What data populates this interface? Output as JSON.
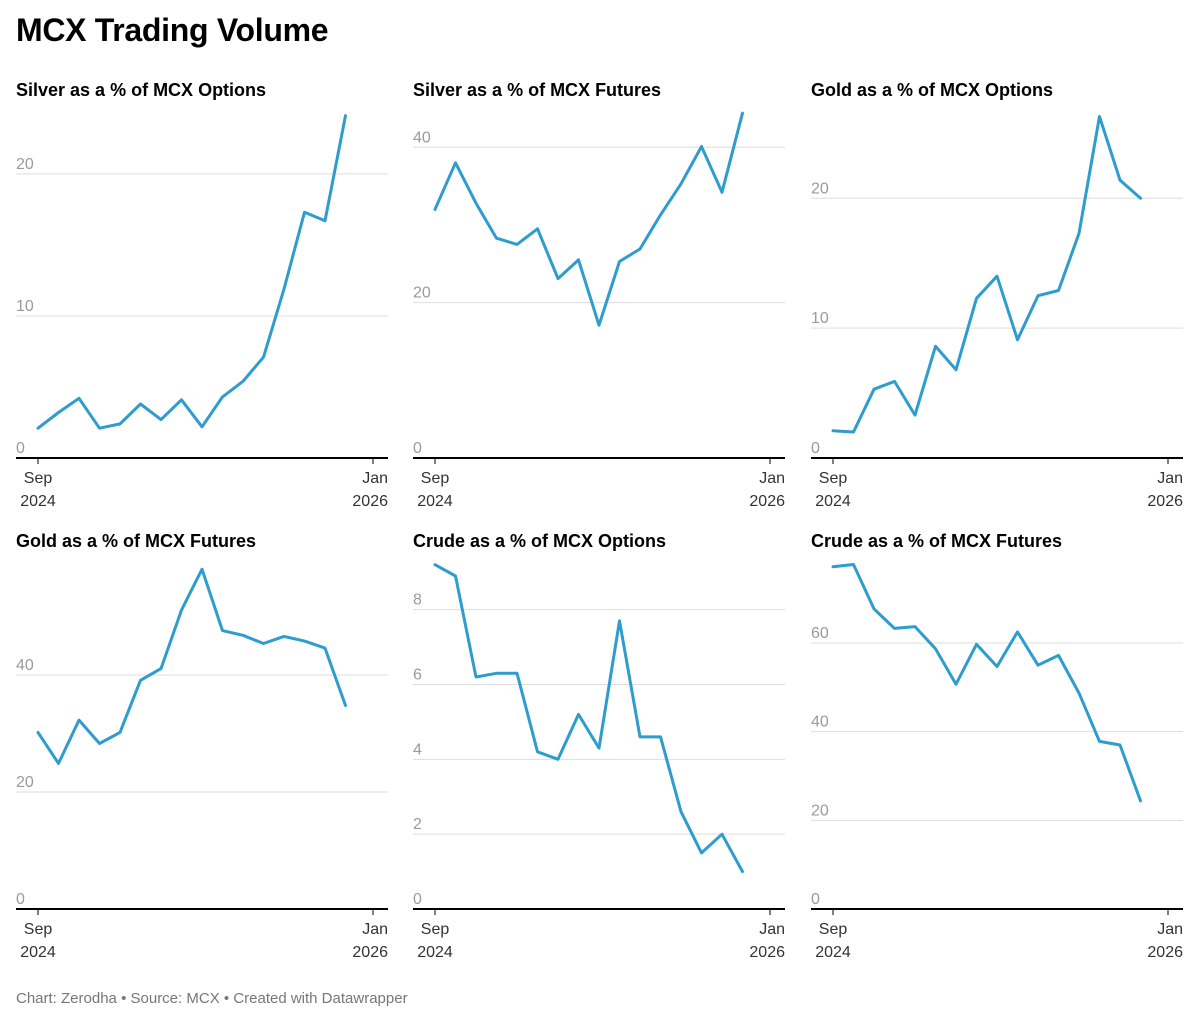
{
  "title": "MCX Trading Volume",
  "footer": {
    "chart_by": "Chart: Zerodha",
    "separator": "•",
    "source": "Source: MCX",
    "created_with": "Created with Datawrapper"
  },
  "colors": {
    "line": "#2e9ccc",
    "grid": "#dddddd",
    "axis": "#000000",
    "tick_label": "#9a9a9a",
    "x_label": "#333333"
  },
  "chart_data": [
    {
      "type": "line",
      "title": "Silver as a % of MCX Options",
      "x": [
        "2024-09",
        "2024-10",
        "2024-11",
        "2024-12",
        "2025-01",
        "2025-02",
        "2025-03",
        "2025-04",
        "2025-05",
        "2025-06",
        "2025-07",
        "2025-08",
        "2025-09",
        "2025-10",
        "2025-11",
        "2025-12",
        "2026-01"
      ],
      "values": [
        2.1,
        3.2,
        4.2,
        2.1,
        2.4,
        3.8,
        2.7,
        4.1,
        2.2,
        4.3,
        5.4,
        7.1,
        11.9,
        17.3,
        16.7,
        24.1,
        null
      ],
      "ylim": [
        0,
        24.5
      ],
      "yticks": [
        0,
        10,
        20
      ],
      "xticks": [
        {
          "top": "Sep",
          "bottom": "2024"
        },
        {
          "top": "Jan",
          "bottom": "2026"
        }
      ],
      "xlabel": "",
      "ylabel": "",
      "grid": true
    },
    {
      "type": "line",
      "title": "Silver as a % of MCX Futures",
      "x": [
        "2024-09",
        "2024-10",
        "2024-11",
        "2024-12",
        "2025-01",
        "2025-02",
        "2025-03",
        "2025-04",
        "2025-05",
        "2025-06",
        "2025-07",
        "2025-08",
        "2025-09",
        "2025-10",
        "2025-11",
        "2025-12",
        "2026-01"
      ],
      "values": [
        32.0,
        38.0,
        32.8,
        28.3,
        27.5,
        29.5,
        23.1,
        25.5,
        17.1,
        25.3,
        26.9,
        31.3,
        35.3,
        40.1,
        34.2,
        44.4,
        null
      ],
      "ylim": [
        0,
        44.8
      ],
      "yticks": [
        0,
        20,
        40
      ],
      "xticks": [
        {
          "top": "Sep",
          "bottom": "2024"
        },
        {
          "top": "Jan",
          "bottom": "2026"
        }
      ],
      "xlabel": "",
      "ylabel": "",
      "grid": true
    },
    {
      "type": "line",
      "title": "Gold as a % of MCX Options",
      "x": [
        "2024-09",
        "2024-10",
        "2024-11",
        "2024-12",
        "2025-01",
        "2025-02",
        "2025-03",
        "2025-04",
        "2025-05",
        "2025-06",
        "2025-07",
        "2025-08",
        "2025-09",
        "2025-10",
        "2025-11",
        "2025-12",
        "2026-01"
      ],
      "values": [
        2.1,
        2.0,
        5.3,
        5.9,
        3.3,
        8.6,
        6.8,
        12.3,
        14.0,
        9.1,
        12.5,
        12.9,
        17.3,
        26.3,
        21.4,
        20.0,
        null
      ],
      "ylim": [
        0,
        26.8
      ],
      "yticks": [
        0,
        10,
        20
      ],
      "xticks": [
        {
          "top": "Sep",
          "bottom": "2024"
        },
        {
          "top": "Jan",
          "bottom": "2026"
        }
      ],
      "xlabel": "",
      "ylabel": "",
      "grid": true
    },
    {
      "type": "line",
      "title": "Gold as a % of MCX Futures",
      "x": [
        "2024-09",
        "2024-10",
        "2024-11",
        "2024-12",
        "2025-01",
        "2025-02",
        "2025-03",
        "2025-04",
        "2025-05",
        "2025-06",
        "2025-07",
        "2025-08",
        "2025-09",
        "2025-10",
        "2025-11",
        "2025-12",
        "2026-01"
      ],
      "values": [
        30.2,
        24.9,
        32.3,
        28.3,
        30.2,
        39.1,
        41.1,
        51.1,
        58.1,
        47.6,
        46.8,
        45.4,
        46.6,
        45.8,
        44.6,
        34.8,
        null
      ],
      "ylim": [
        0,
        59.5
      ],
      "yticks": [
        0,
        20,
        40
      ],
      "xticks": [
        {
          "top": "Sep",
          "bottom": "2024"
        },
        {
          "top": "Jan",
          "bottom": "2026"
        }
      ],
      "xlabel": "",
      "ylabel": "",
      "grid": true
    },
    {
      "type": "line",
      "title": "Crude as a % of MCX Options",
      "x": [
        "2024-09",
        "2024-10",
        "2024-11",
        "2024-12",
        "2025-01",
        "2025-02",
        "2025-03",
        "2025-04",
        "2025-05",
        "2025-06",
        "2025-07",
        "2025-08",
        "2025-09",
        "2025-10",
        "2025-11",
        "2025-12",
        "2026-01"
      ],
      "values": [
        9.2,
        8.9,
        6.2,
        6.3,
        6.3,
        4.2,
        4.0,
        5.2,
        4.3,
        7.7,
        4.6,
        4.6,
        2.6,
        1.5,
        2.0,
        1.0,
        null
      ],
      "ylim": [
        0,
        9.3
      ],
      "yticks": [
        0,
        2,
        4,
        6,
        8
      ],
      "xticks": [
        {
          "top": "Sep",
          "bottom": "2024"
        },
        {
          "top": "Jan",
          "bottom": "2026"
        }
      ],
      "xlabel": "",
      "ylabel": "",
      "grid": true
    },
    {
      "type": "line",
      "title": "Crude as a % of MCX Futures",
      "x": [
        "2024-09",
        "2024-10",
        "2024-11",
        "2024-12",
        "2025-01",
        "2025-02",
        "2025-03",
        "2025-04",
        "2025-05",
        "2025-06",
        "2025-07",
        "2025-08",
        "2025-09",
        "2025-10",
        "2025-11",
        "2025-12",
        "2026-01"
      ],
      "values": [
        77.2,
        77.7,
        67.7,
        63.3,
        63.7,
        58.7,
        50.7,
        59.7,
        54.7,
        62.5,
        55.0,
        57.2,
        48.7,
        37.8,
        37.0,
        24.4,
        null
      ],
      "ylim": [
        0,
        78.5
      ],
      "yticks": [
        0,
        20,
        40,
        60
      ],
      "xticks": [
        {
          "top": "Sep",
          "bottom": "2024"
        },
        {
          "top": "Jan",
          "bottom": "2026"
        }
      ],
      "xlabel": "",
      "ylabel": "",
      "grid": true
    }
  ]
}
